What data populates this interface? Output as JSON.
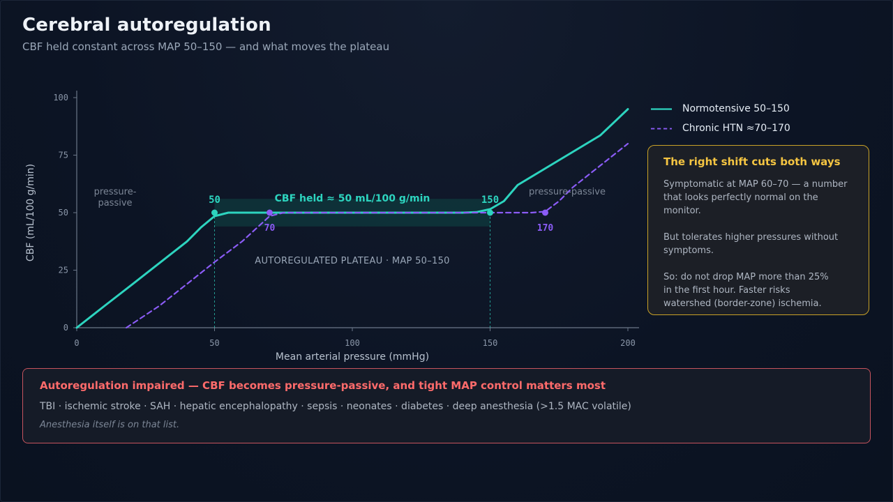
{
  "header": {
    "title": "Cerebral autoregulation",
    "subtitle": "CBF held constant across MAP 50–150 — and what moves the plateau"
  },
  "chart_data": {
    "type": "line",
    "xlabel": "Mean arterial pressure (mmHg)",
    "ylabel": "CBF (mL/100 g/min)",
    "xlim": [
      0,
      200
    ],
    "ylim": [
      0,
      100
    ],
    "x_ticks": [
      0,
      50,
      100,
      150,
      200
    ],
    "y_ticks": [
      0,
      25,
      50,
      75,
      100
    ],
    "grid": false,
    "legend_position": "right",
    "series": [
      {
        "name": "Normotensive 50–150",
        "color": "#2dd4bf",
        "style": "solid",
        "points": [
          [
            0,
            0
          ],
          [
            10,
            9.4
          ],
          [
            20,
            18.7
          ],
          [
            30,
            28.1
          ],
          [
            40,
            37.5
          ],
          [
            45,
            43.5
          ],
          [
            50,
            48.5
          ],
          [
            55,
            50
          ],
          [
            60,
            50
          ],
          [
            100,
            50
          ],
          [
            140,
            50
          ],
          [
            145,
            50.2
          ],
          [
            150,
            51.5
          ],
          [
            155,
            55
          ],
          [
            160,
            62
          ],
          [
            170,
            69.2
          ],
          [
            180,
            76.4
          ],
          [
            190,
            83.6
          ],
          [
            200,
            95
          ]
        ]
      },
      {
        "name": "Chronic HTN ≈70–170",
        "color": "#8b5cf6",
        "style": "dashed",
        "points": [
          [
            18,
            0
          ],
          [
            30,
            9.5
          ],
          [
            40,
            19
          ],
          [
            50,
            28.5
          ],
          [
            60,
            37.5
          ],
          [
            65,
            43
          ],
          [
            70,
            48.5
          ],
          [
            75,
            50
          ],
          [
            100,
            50
          ],
          [
            150,
            50
          ],
          [
            165,
            50
          ],
          [
            170,
            50.5
          ],
          [
            175,
            55
          ],
          [
            180,
            61
          ],
          [
            190,
            70.5
          ],
          [
            200,
            80
          ]
        ]
      }
    ],
    "markers": [
      {
        "series": 0,
        "x": 50,
        "y": 50,
        "label": "50"
      },
      {
        "series": 0,
        "x": 150,
        "y": 50,
        "label": "150"
      },
      {
        "series": 1,
        "x": 70,
        "y": 50,
        "label": "70"
      },
      {
        "series": 1,
        "x": 170,
        "y": 50,
        "label": "170"
      }
    ],
    "annotations": {
      "plateau_label": "CBF held ≈ 50 mL/100 g/min",
      "plateau_caption": "AUTOREGULATED PLATEAU · MAP 50–150",
      "left_region": "pressure-\npassive",
      "right_region": "pressure-passive"
    },
    "colors": {
      "axis": "#6b7789",
      "tick_text": "#8a96a8",
      "label_text": "#b8c2cf",
      "plateau_band": "#0f3a3d",
      "normotensive": "#2dd4bf",
      "htn": "#8b5cf6"
    }
  },
  "callout": {
    "title": "The right shift cuts both ways",
    "p1": "Symptomatic at MAP 60–70 — a number\nthat looks perfectly normal on the\nmonitor.",
    "p2": "But tolerates higher pressures without\nsymptoms.",
    "p3": "So: do not drop MAP more than 25%\nin the first hour. Faster risks\nwatershed (border-zone) ischemia."
  },
  "warning": {
    "title": "Autoregulation impaired — CBF becomes pressure-passive, and tight MAP control matters most",
    "conditions": "TBI · ischemic stroke · SAH · hepatic encephalopathy · sepsis · neonates · diabetes · deep anesthesia (>1.5 MAC volatile)",
    "note": "Anesthesia itself is on that list."
  }
}
